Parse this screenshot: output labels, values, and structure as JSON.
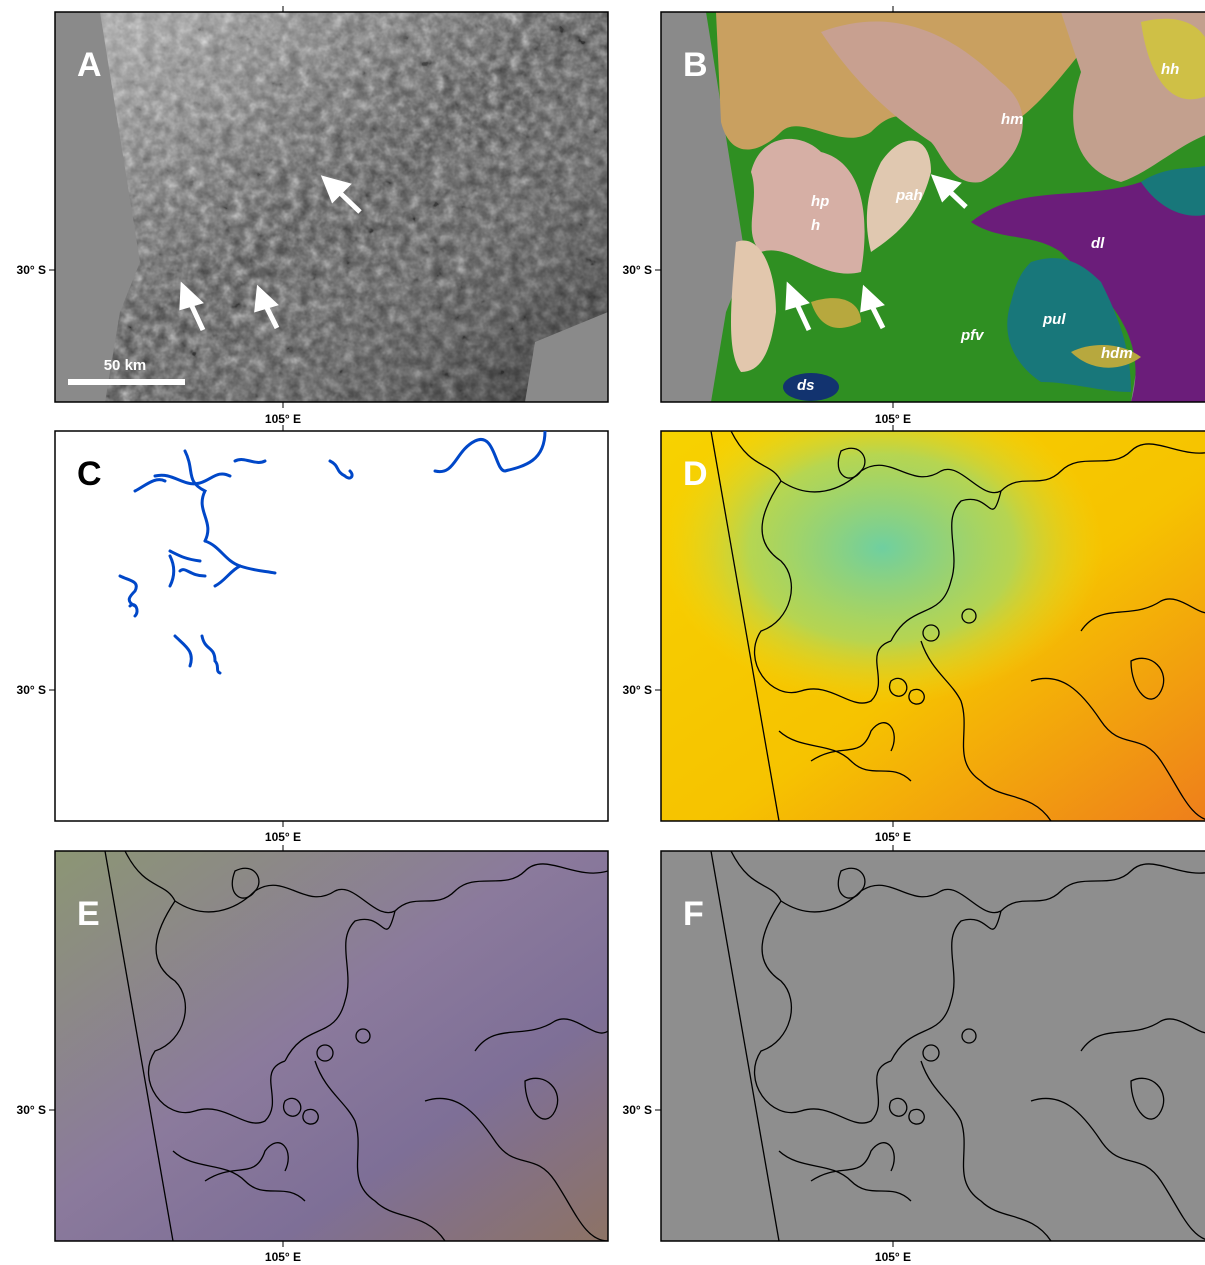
{
  "panels": [
    {
      "label": "A",
      "lat_label": "30° S",
      "lon_label": "105° E",
      "scale_bar": "50 km"
    },
    {
      "label": "B",
      "lat_label": "30° S",
      "lon_label": "105° E",
      "units": [
        "hh",
        "hm",
        "hp",
        "h",
        "pah",
        "dl",
        "pul",
        "pfv",
        "hdm",
        "ds"
      ]
    },
    {
      "label": "C",
      "lat_label": "30° S",
      "lon_label": "105° E"
    },
    {
      "label": "D",
      "lat_label": "30° S",
      "lon_label": "105° E"
    },
    {
      "label": "E",
      "lat_label": "30° S",
      "lon_label": "105° E"
    },
    {
      "label": "F",
      "lat_label": "30° S",
      "lon_label": "105° E"
    }
  ]
}
